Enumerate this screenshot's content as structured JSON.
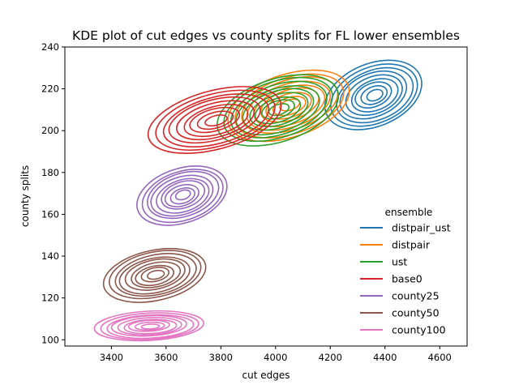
{
  "chart_data": {
    "type": "kde_contour",
    "title": "KDE plot of cut edges vs county splits for FL lower ensembles",
    "xlabel": "cut edges",
    "ylabel": "county splits",
    "xlim": [
      3230,
      4700
    ],
    "ylim": [
      97,
      240
    ],
    "xticks": [
      3400,
      3600,
      3800,
      4000,
      4200,
      4400,
      4600
    ],
    "yticks": [
      100,
      120,
      140,
      160,
      180,
      200,
      220,
      240
    ],
    "grid": false,
    "legend": {
      "title": "ensemble",
      "position": "center-right"
    },
    "series": [
      {
        "name": "distpair_ust",
        "color": "#1f77b4",
        "center": [
          4360,
          217
        ],
        "outer_half_width": [
          185,
          15
        ],
        "tilt_deg": -22,
        "levels": 9
      },
      {
        "name": "distpair",
        "color": "#ff7f0e",
        "center": [
          4050,
          212
        ],
        "outer_half_width": [
          230,
          15
        ],
        "tilt_deg": -18,
        "levels": 9
      },
      {
        "name": "ust",
        "color": "#2ca02c",
        "center": [
          4010,
          210
        ],
        "outer_half_width": [
          230,
          15
        ],
        "tilt_deg": -18,
        "levels": 9
      },
      {
        "name": "base0",
        "color": "#d62728",
        "center": [
          3780,
          205
        ],
        "outer_half_width": [
          250,
          14
        ],
        "tilt_deg": -15,
        "levels": 9
      },
      {
        "name": "county25",
        "color": "#9467bd",
        "center": [
          3660,
          169
        ],
        "outer_half_width": [
          170,
          13
        ],
        "tilt_deg": -18,
        "levels": 9
      },
      {
        "name": "county50",
        "color": "#8c564b",
        "center": [
          3560,
          131
        ],
        "outer_half_width": [
          190,
          12
        ],
        "tilt_deg": -12,
        "levels": 9
      },
      {
        "name": "county100",
        "color": "#e377c2",
        "center": [
          3540,
          106.5
        ],
        "outer_half_width": [
          200,
          7
        ],
        "tilt_deg": -3,
        "levels": 9
      }
    ]
  }
}
